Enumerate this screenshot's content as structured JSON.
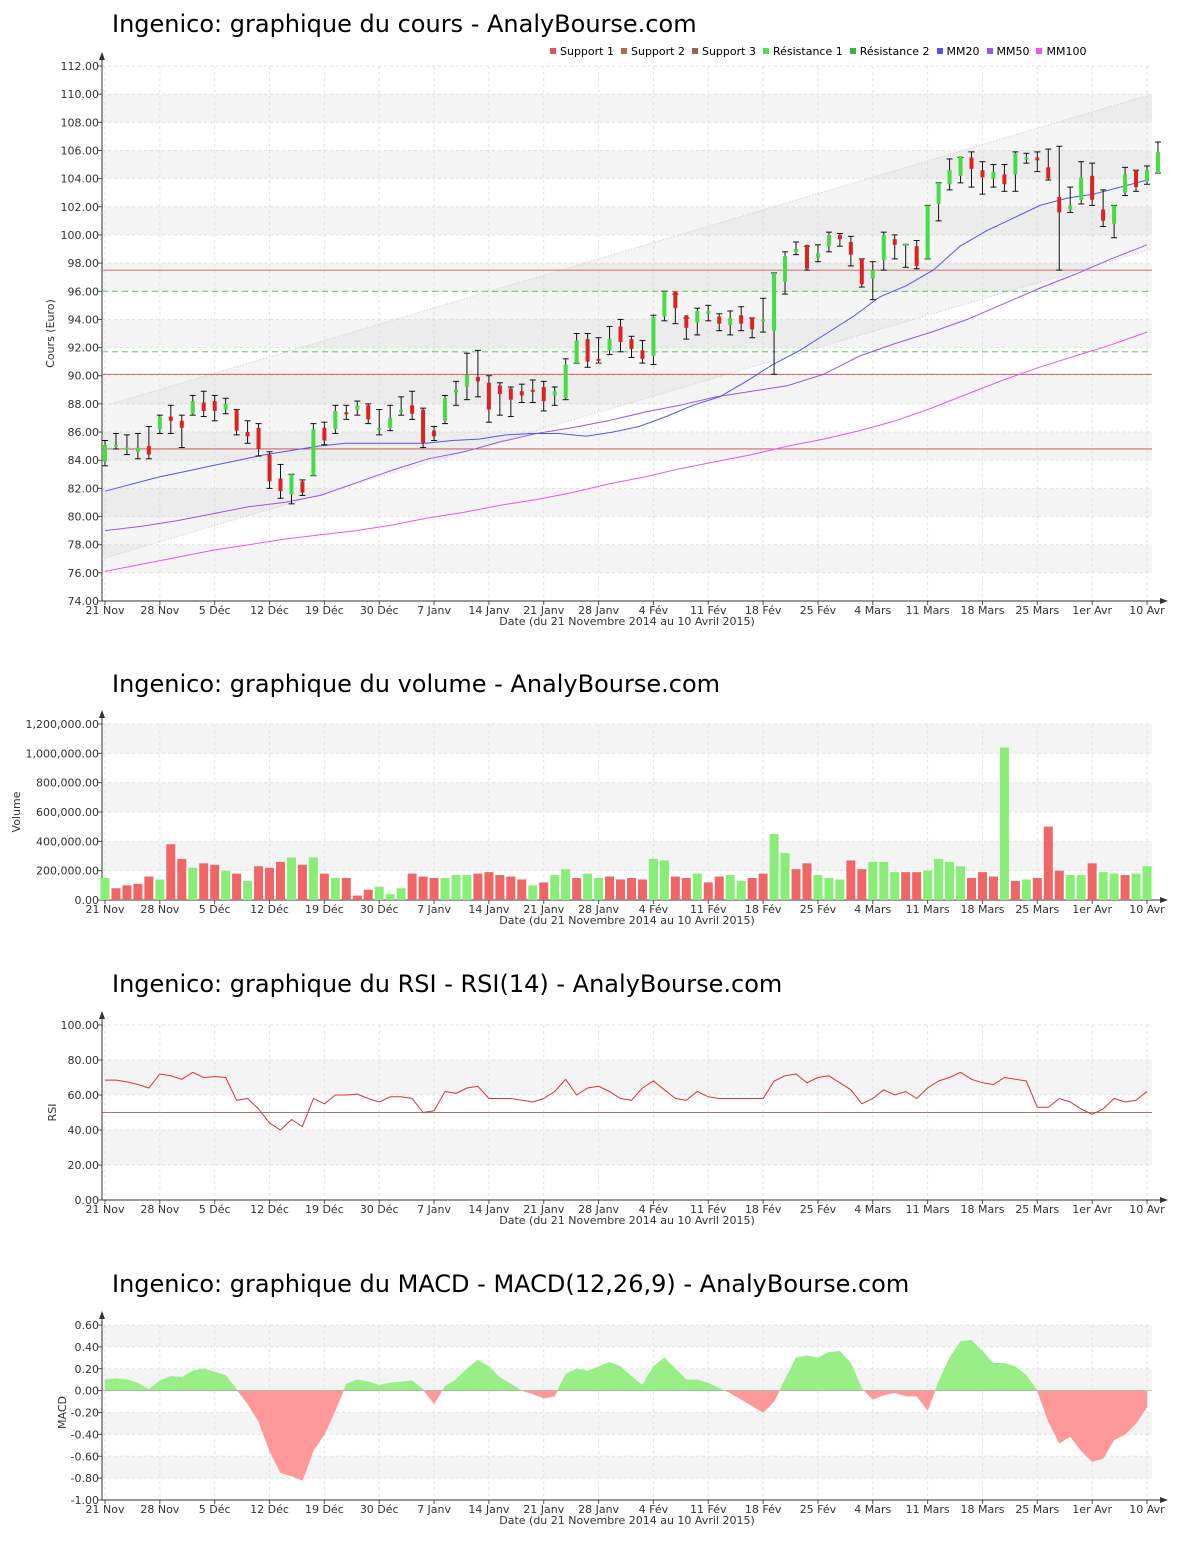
{
  "titles": {
    "price": "Ingenico: graphique du cours - AnalyBourse.com",
    "volume": "Ingenico: graphique du volume - AnalyBourse.com",
    "rsi": "Ingenico: graphique du RSI - RSI(14) - AnalyBourse.com",
    "macd": "Ingenico: graphique du MACD - MACD(12,26,9) - AnalyBourse.com"
  },
  "shared": {
    "date_labels": [
      "21 Nov",
      "28 Nov",
      "5 Déc",
      "12 Déc",
      "19 Déc",
      "30 Déc",
      "7 Janv",
      "14 Janv",
      "21 Janv",
      "28 Janv",
      "4 Fév",
      "11 Fév",
      "18 Fév",
      "25 Fév",
      "4 Mars",
      "11 Mars",
      "18 Mars",
      "25 Mars",
      "1er Avr",
      "10 Avr"
    ],
    "xlabel": "Date (du 21 Novembre 2014 au 10 Avril 2015)"
  },
  "legend": [
    {
      "label": "Support 1",
      "color": "#e05555"
    },
    {
      "label": "Support 2",
      "color": "#c06060"
    },
    {
      "label": "Support 3",
      "color": "#a06060"
    },
    {
      "label": "Résistance 1",
      "color": "#55dd55"
    },
    {
      "label": "Résistance 2",
      "color": "#44aa44"
    },
    {
      "label": "MM20",
      "color": "#5555ee"
    },
    {
      "label": "MM50",
      "color": "#9955ee"
    },
    {
      "label": "MM100",
      "color": "#ee55ee"
    }
  ],
  "chart_data": [
    {
      "type": "candlestick",
      "ylabel": "Cours (Euro)",
      "ylim": [
        74,
        112
      ],
      "yticks": [
        "74.00",
        "76.00",
        "78.00",
        "80.00",
        "82.00",
        "84.00",
        "86.00",
        "88.00",
        "90.00",
        "92.00",
        "94.00",
        "96.00",
        "98.00",
        "100.00",
        "102.00",
        "104.00",
        "106.00",
        "108.00",
        "110.00",
        "112.00"
      ],
      "levels": {
        "support_1": 84.8,
        "support_2": 90.1,
        "support_3": 97.5,
        "resistance_1": 91.7,
        "resistance_2": 96.0
      },
      "ohlc": [
        [
          83.9,
          85.1,
          83.6,
          85.4
        ],
        [
          85.0,
          85.1,
          84.8,
          85.9
        ],
        [
          84.8,
          84.9,
          84.4,
          85.8
        ],
        [
          84.6,
          84.9,
          84.1,
          85.9
        ],
        [
          85.0,
          84.4,
          84.1,
          86.4
        ],
        [
          86.2,
          87.1,
          85.9,
          87.2
        ],
        [
          87.1,
          86.8,
          85.9,
          87.9
        ],
        [
          86.8,
          86.3,
          84.9,
          87.2
        ],
        [
          87.3,
          88.2,
          87.2,
          88.6
        ],
        [
          88.1,
          87.5,
          87.1,
          88.9
        ],
        [
          88.2,
          87.5,
          86.8,
          88.6
        ],
        [
          87.6,
          88.0,
          87.3,
          88.4
        ],
        [
          87.6,
          86.1,
          85.8,
          87.6
        ],
        [
          86.0,
          85.7,
          85.2,
          86.8
        ],
        [
          86.3,
          84.8,
          84.3,
          86.6
        ],
        [
          84.4,
          82.5,
          82.0,
          84.6
        ],
        [
          82.7,
          81.8,
          81.3,
          83.7
        ],
        [
          81.6,
          83.0,
          80.9,
          83.0
        ],
        [
          82.5,
          81.7,
          81.5,
          82.6
        ],
        [
          82.9,
          86.2,
          82.9,
          86.6
        ],
        [
          86.3,
          85.4,
          85.1,
          86.7
        ],
        [
          86.2,
          87.5,
          85.9,
          87.9
        ],
        [
          87.4,
          87.3,
          86.9,
          87.9
        ],
        [
          87.6,
          87.9,
          87.2,
          88.2
        ],
        [
          87.9,
          86.9,
          86.6,
          88.0
        ],
        [
          86.2,
          86.3,
          85.8,
          87.6
        ],
        [
          86.3,
          87.0,
          86.1,
          87.9
        ],
        [
          87.4,
          87.6,
          87.2,
          88.5
        ],
        [
          87.9,
          87.3,
          86.9,
          88.9
        ],
        [
          87.6,
          85.2,
          84.9,
          87.7
        ],
        [
          86.1,
          85.7,
          85.4,
          86.4
        ],
        [
          86.8,
          88.4,
          86.6,
          88.6
        ],
        [
          88.8,
          89.0,
          87.9,
          89.6
        ],
        [
          89.2,
          90.1,
          88.3,
          91.6
        ],
        [
          89.9,
          89.6,
          88.5,
          91.8
        ],
        [
          89.5,
          87.6,
          86.7,
          90.0
        ],
        [
          89.3,
          88.7,
          87.2,
          89.5
        ],
        [
          89.1,
          88.3,
          87.1,
          89.2
        ],
        [
          88.9,
          88.6,
          88.1,
          89.4
        ],
        [
          89.0,
          88.9,
          88.1,
          89.7
        ],
        [
          89.2,
          88.2,
          87.5,
          89.6
        ],
        [
          88.6,
          88.9,
          87.9,
          89.2
        ],
        [
          88.4,
          90.8,
          88.3,
          91.2
        ],
        [
          90.9,
          92.5,
          90.9,
          93.0
        ],
        [
          92.6,
          91.0,
          90.6,
          93.0
        ],
        [
          91.2,
          91.1,
          90.9,
          92.7
        ],
        [
          91.8,
          92.6,
          91.5,
          93.5
        ],
        [
          93.5,
          92.4,
          91.7,
          94.0
        ],
        [
          92.6,
          91.9,
          91.3,
          92.8
        ],
        [
          91.8,
          91.2,
          90.9,
          92.5
        ],
        [
          91.4,
          94.2,
          90.8,
          94.3
        ],
        [
          94.2,
          96.0,
          93.9,
          96.0
        ],
        [
          96.0,
          94.8,
          93.7,
          95.8
        ],
        [
          94.3,
          93.4,
          92.6,
          94.1
        ],
        [
          93.8,
          94.6,
          92.9,
          94.8
        ],
        [
          94.4,
          94.6,
          93.9,
          95.0
        ],
        [
          94.2,
          93.7,
          93.2,
          94.4
        ],
        [
          93.6,
          94.1,
          92.9,
          94.6
        ],
        [
          94.3,
          93.7,
          93.2,
          94.9
        ],
        [
          94.1,
          93.3,
          92.7,
          94.1
        ],
        [
          93.9,
          94.0,
          93.1,
          95.5
        ],
        [
          93.2,
          97.3,
          90.1,
          97.3
        ],
        [
          96.7,
          98.5,
          95.8,
          98.8
        ],
        [
          98.8,
          99.0,
          98.6,
          99.5
        ],
        [
          99.3,
          97.6,
          97.5,
          99.2
        ],
        [
          98.4,
          98.7,
          98.1,
          99.3
        ],
        [
          99.2,
          100.0,
          98.8,
          100.2
        ],
        [
          100.0,
          99.7,
          99.2,
          100.1
        ],
        [
          99.5,
          98.6,
          97.8,
          99.9
        ],
        [
          98.3,
          96.5,
          96.3,
          98.3
        ],
        [
          96.9,
          97.5,
          95.4,
          98.1
        ],
        [
          98.2,
          100.0,
          97.5,
          100.2
        ],
        [
          99.7,
          99.3,
          98.3,
          100.0
        ],
        [
          99.3,
          99.4,
          97.7,
          99.3
        ],
        [
          99.2,
          97.8,
          97.6,
          99.6
        ],
        [
          98.3,
          102.1,
          98.3,
          102.1
        ],
        [
          102.2,
          103.7,
          101.0,
          103.7
        ],
        [
          103.6,
          104.6,
          103.2,
          105.4
        ],
        [
          104.2,
          105.6,
          103.7,
          105.5
        ],
        [
          105.5,
          104.7,
          103.4,
          105.9
        ],
        [
          104.6,
          104.1,
          102.9,
          105.2
        ],
        [
          104.0,
          104.5,
          103.4,
          105.0
        ],
        [
          104.3,
          103.6,
          103.1,
          105.0
        ],
        [
          104.3,
          105.8,
          103.1,
          105.9
        ],
        [
          105.5,
          105.5,
          105.1,
          105.8
        ],
        [
          105.5,
          105.3,
          104.5,
          105.9
        ],
        [
          104.8,
          104.0,
          103.9,
          106.1
        ],
        [
          102.7,
          101.6,
          97.5,
          106.3
        ],
        [
          101.8,
          102.1,
          101.6,
          103.4
        ],
        [
          102.5,
          104.1,
          102.2,
          105.2
        ],
        [
          104.2,
          102.5,
          102.1,
          105.1
        ],
        [
          101.8,
          101.0,
          100.6,
          103.2
        ],
        [
          100.8,
          102.1,
          99.8,
          102.1
        ],
        [
          103.0,
          104.3,
          102.8,
          104.8
        ],
        [
          104.6,
          103.4,
          103.1,
          104.6
        ],
        [
          103.8,
          104.6,
          103.6,
          104.9
        ],
        [
          104.4,
          105.9,
          104.4,
          106.6
        ]
      ],
      "mm20": [
        81.8,
        82.3,
        82.8,
        83.2,
        83.6,
        84.0,
        84.4,
        84.7,
        85.0,
        85.2,
        85.2,
        85.2,
        85.2,
        85.4,
        85.5,
        85.8,
        85.9,
        85.9,
        85.7,
        86.0,
        86.4,
        87.1,
        87.9,
        88.5,
        89.6,
        90.8,
        91.8,
        93.0,
        94.2,
        95.6,
        96.4,
        97.5,
        99.2,
        100.3,
        101.2,
        102.1,
        102.6,
        102.9,
        103.4,
        103.9
      ],
      "mm50": [
        79.0,
        79.3,
        79.7,
        80.2,
        80.7,
        81.0,
        81.5,
        82.4,
        83.3,
        84.1,
        84.6,
        85.3,
        85.9,
        86.3,
        86.8,
        87.4,
        87.9,
        88.5,
        88.9,
        89.3,
        90.1,
        91.4,
        92.3,
        93.1,
        94.0,
        95.1,
        96.2,
        97.2,
        98.3,
        99.3
      ],
      "mm100": [
        76.1,
        76.6,
        77.1,
        77.6,
        78.0,
        78.4,
        78.7,
        79.0,
        79.4,
        79.9,
        80.3,
        80.8,
        81.2,
        81.7,
        82.3,
        82.8,
        83.4,
        83.9,
        84.4,
        85.0,
        85.5,
        86.1,
        86.8,
        87.7,
        88.7,
        89.7,
        90.6,
        91.4,
        92.2,
        93.1
      ]
    },
    {
      "type": "bar",
      "ylabel": "Volume",
      "ylim": [
        0,
        1200000
      ],
      "yticks": [
        "0.00",
        "200,000.00",
        "400,000.00",
        "600,000.00",
        "800,000.00",
        "1,000,000.00",
        "1,200,000.00"
      ],
      "values": [
        150000,
        80000,
        100000,
        110000,
        160000,
        140000,
        380000,
        280000,
        220000,
        250000,
        240000,
        200000,
        180000,
        130000,
        230000,
        220000,
        260000,
        290000,
        240000,
        290000,
        180000,
        150000,
        150000,
        30000,
        70000,
        90000,
        40000,
        80000,
        180000,
        160000,
        150000,
        150000,
        170000,
        170000,
        180000,
        190000,
        170000,
        160000,
        140000,
        100000,
        120000,
        170000,
        210000,
        150000,
        180000,
        150000,
        160000,
        140000,
        150000,
        140000,
        280000,
        270000,
        160000,
        150000,
        180000,
        120000,
        160000,
        170000,
        130000,
        150000,
        180000,
        450000,
        320000,
        210000,
        250000,
        170000,
        150000,
        140000,
        270000,
        210000,
        260000,
        260000,
        190000,
        190000,
        190000,
        200000,
        280000,
        260000,
        230000,
        150000,
        190000,
        160000,
        1040000,
        130000,
        140000,
        150000,
        500000,
        200000,
        170000,
        170000,
        250000,
        190000,
        180000,
        170000,
        180000,
        230000
      ],
      "up": [
        1,
        0,
        0,
        0,
        0,
        1,
        0,
        0,
        1,
        0,
        0,
        1,
        0,
        1,
        0,
        0,
        0,
        1,
        0,
        1,
        0,
        1,
        0,
        0,
        0,
        1,
        1,
        1,
        0,
        0,
        0,
        1,
        1,
        1,
        0,
        0,
        0,
        0,
        0,
        1,
        0,
        1,
        1,
        0,
        1,
        1,
        0,
        0,
        0,
        0,
        1,
        1,
        0,
        0,
        1,
        0,
        0,
        1,
        1,
        0,
        0,
        1,
        1,
        0,
        0,
        1,
        1,
        1,
        0,
        0,
        1,
        1,
        1,
        0,
        0,
        1,
        1,
        1,
        1,
        0,
        0,
        0,
        1,
        0,
        1,
        0,
        0,
        0,
        1,
        1,
        0,
        1,
        1,
        0,
        1,
        1
      ]
    },
    {
      "type": "line",
      "ylabel": "RSI",
      "ylim": [
        0,
        100
      ],
      "yticks": [
        "0.00",
        "20.00",
        "40.00",
        "60.00",
        "80.00",
        "100.00"
      ],
      "reference": 50,
      "values": [
        68.5,
        68.5,
        67.5,
        66,
        64,
        72,
        71,
        69,
        73,
        70,
        70.5,
        70,
        57,
        58,
        52,
        44,
        40,
        46,
        42,
        58,
        55,
        60,
        60,
        60.5,
        58,
        56,
        59,
        59,
        58,
        50,
        51,
        62,
        61,
        64,
        65,
        58,
        58,
        58,
        57,
        56,
        58,
        62,
        69,
        60,
        64,
        65,
        62,
        58,
        57,
        64,
        68,
        63,
        58,
        57,
        62,
        59,
        58,
        58,
        58,
        58,
        58,
        68,
        71,
        72,
        67,
        70,
        71,
        67,
        63,
        55,
        58,
        63,
        60,
        62,
        58,
        64,
        68,
        70,
        73,
        69,
        67,
        66,
        70,
        69,
        68,
        53,
        53,
        58,
        56,
        52,
        49,
        52,
        58,
        56,
        57,
        62
      ]
    },
    {
      "type": "area",
      "ylabel": "MACD",
      "ylim": [
        -1.0,
        0.6
      ],
      "yticks": [
        "-1.00",
        "-0.80",
        "-0.60",
        "-0.40",
        "-0.20",
        "0.00",
        "0.20",
        "0.40",
        "0.60"
      ],
      "values": [
        0.1,
        0.11,
        0.1,
        0.07,
        0.01,
        0.09,
        0.13,
        0.12,
        0.18,
        0.2,
        0.17,
        0.14,
        0.01,
        -0.12,
        -0.28,
        -0.55,
        -0.75,
        -0.78,
        -0.82,
        -0.55,
        -0.4,
        -0.18,
        0.06,
        0.1,
        0.08,
        0.05,
        0.07,
        0.08,
        0.09,
        0.01,
        -0.12,
        0.04,
        0.1,
        0.2,
        0.28,
        0.22,
        0.12,
        0.06,
        0.0,
        -0.03,
        -0.07,
        -0.05,
        0.15,
        0.2,
        0.18,
        0.22,
        0.26,
        0.22,
        0.13,
        0.05,
        0.22,
        0.3,
        0.2,
        0.1,
        0.1,
        0.07,
        0.02,
        -0.02,
        -0.08,
        -0.14,
        -0.2,
        -0.1,
        0.1,
        0.3,
        0.32,
        0.3,
        0.35,
        0.36,
        0.25,
        0.02,
        -0.08,
        -0.04,
        -0.02,
        -0.05,
        -0.05,
        -0.18,
        0.08,
        0.3,
        0.45,
        0.46,
        0.36,
        0.25,
        0.25,
        0.22,
        0.14,
        0.0,
        -0.28,
        -0.48,
        -0.42,
        -0.55,
        -0.65,
        -0.62,
        -0.45,
        -0.4,
        -0.3,
        -0.15
      ]
    }
  ]
}
